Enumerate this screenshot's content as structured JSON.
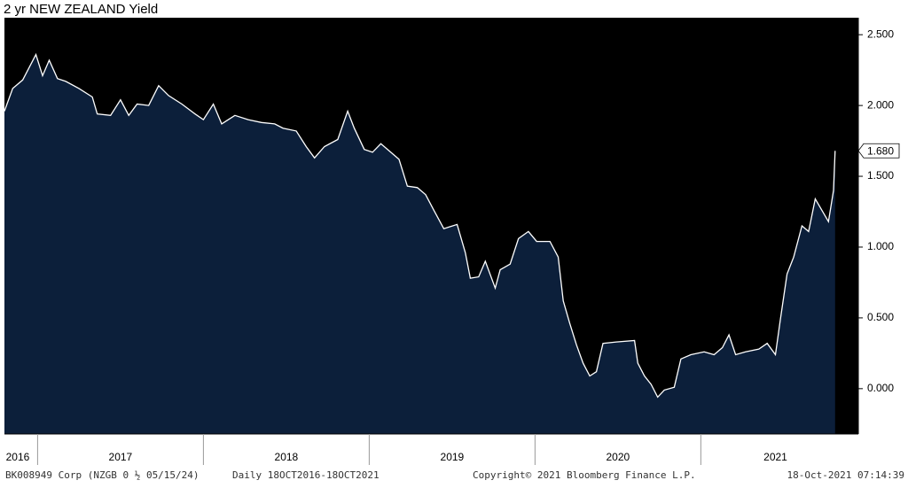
{
  "chart_data": {
    "type": "area",
    "title": "2 yr NEW ZEALAND Yield",
    "x": [
      2016.8,
      2016.85,
      2016.91,
      2016.99,
      2017.03,
      2017.07,
      2017.12,
      2017.17,
      2017.25,
      2017.33,
      2017.36,
      2017.44,
      2017.5,
      2017.55,
      2017.6,
      2017.67,
      2017.73,
      2017.79,
      2017.87,
      2017.95,
      2018.0,
      2018.06,
      2018.11,
      2018.19,
      2018.27,
      2018.35,
      2018.43,
      2018.48,
      2018.56,
      2018.62,
      2018.67,
      2018.73,
      2018.81,
      2018.87,
      2018.91,
      2018.97,
      2019.02,
      2019.07,
      2019.13,
      2019.18,
      2019.23,
      2019.29,
      2019.34,
      2019.39,
      2019.45,
      2019.53,
      2019.58,
      2019.61,
      2019.66,
      2019.7,
      2019.76,
      2019.79,
      2019.85,
      2019.9,
      2019.96,
      2020.01,
      2020.09,
      2020.14,
      2020.17,
      2020.21,
      2020.25,
      2020.29,
      2020.33,
      2020.37,
      2020.41,
      2020.49,
      2020.6,
      2020.62,
      2020.66,
      2020.7,
      2020.74,
      2020.78,
      2020.84,
      2020.88,
      2020.94,
      2021.02,
      2021.08,
      2021.13,
      2021.17,
      2021.21,
      2021.27,
      2021.35,
      2021.4,
      2021.45,
      2021.48,
      2021.52,
      2021.56,
      2021.61,
      2021.65,
      2021.69,
      2021.74,
      2021.77,
      2021.8,
      2021.81
    ],
    "values": [
      1.96,
      2.12,
      2.18,
      2.36,
      2.21,
      2.32,
      2.19,
      2.17,
      2.12,
      2.06,
      1.94,
      1.93,
      2.04,
      1.93,
      2.01,
      2.0,
      2.14,
      2.07,
      2.01,
      1.94,
      1.9,
      2.01,
      1.87,
      1.93,
      1.9,
      1.88,
      1.87,
      1.84,
      1.82,
      1.71,
      1.63,
      1.71,
      1.76,
      1.96,
      1.84,
      1.69,
      1.67,
      1.73,
      1.67,
      1.62,
      1.43,
      1.42,
      1.37,
      1.26,
      1.13,
      1.16,
      0.96,
      0.78,
      0.79,
      0.9,
      0.71,
      0.84,
      0.88,
      1.06,
      1.11,
      1.04,
      1.04,
      0.93,
      0.62,
      0.46,
      0.31,
      0.18,
      0.09,
      0.12,
      0.32,
      0.33,
      0.34,
      0.18,
      0.09,
      0.03,
      -0.06,
      -0.01,
      0.01,
      0.21,
      0.24,
      0.26,
      0.24,
      0.29,
      0.38,
      0.24,
      0.26,
      0.28,
      0.32,
      0.24,
      0.49,
      0.81,
      0.93,
      1.15,
      1.11,
      1.34,
      1.24,
      1.18,
      1.4,
      1.68
    ],
    "fill_color": "#0c1f3a",
    "line_color": "#ffffff",
    "background": "#000000",
    "xlim": [
      2016.8,
      2021.95
    ],
    "xticks": [
      {
        "value": 2016.88,
        "label": "2016"
      },
      {
        "value": 2017.5,
        "label": "2017"
      },
      {
        "value": 2018.5,
        "label": "2018"
      },
      {
        "value": 2019.5,
        "label": "2019"
      },
      {
        "value": 2020.5,
        "label": "2020"
      },
      {
        "value": 2021.45,
        "label": "2021"
      }
    ],
    "year_boundaries": [
      2017,
      2018,
      2019,
      2020,
      2021
    ],
    "ylim": [
      -0.32,
      2.62
    ],
    "yticks": [
      {
        "value": 2.5,
        "label": "2.500"
      },
      {
        "value": 2,
        "label": "2.000"
      },
      {
        "value": 1.5,
        "label": "1.500"
      },
      {
        "value": 1,
        "label": "1.000"
      },
      {
        "value": 0.5,
        "label": "0.500"
      },
      {
        "value": 0,
        "label": "0.000"
      }
    ],
    "last_price": {
      "value": 1.68,
      "label": "1.680"
    }
  },
  "footer": {
    "security": "BK008949 Corp (NZGB 0 ½ 05/15/24)",
    "range": "Daily 18OCT2016-18OCT2021",
    "copyright": "Copyright© 2021 Bloomberg Finance L.P.",
    "timestamp": "18-Oct-2021 07:14:39"
  }
}
